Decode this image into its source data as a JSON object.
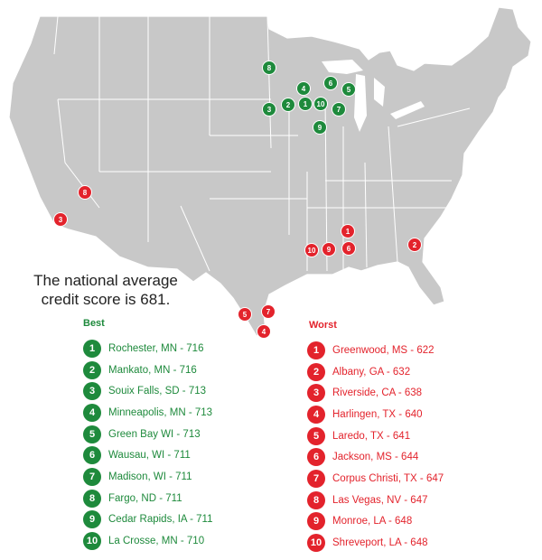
{
  "colors": {
    "best": "#1e8a3c",
    "worst": "#e3232c",
    "land": "#c8c8c8",
    "border": "#ffffff",
    "text": "#222222"
  },
  "headline": {
    "line1": "The national average",
    "line2": "credit score is 681."
  },
  "best": {
    "title": "Best",
    "items": [
      {
        "rank": "1",
        "text": "Rochester, MN - 716"
      },
      {
        "rank": "2",
        "text": "Mankato, MN - 716"
      },
      {
        "rank": "3",
        "text": "Souix Falls, SD - 713"
      },
      {
        "rank": "4",
        "text": "Minneapolis, MN - 713"
      },
      {
        "rank": "5",
        "text": "Green Bay WI - 713"
      },
      {
        "rank": "6",
        "text": "Wausau, WI - 711"
      },
      {
        "rank": "7",
        "text": "Madison, WI - 711"
      },
      {
        "rank": "8",
        "text": "Fargo, ND - 711"
      },
      {
        "rank": "9",
        "text": "Cedar Rapids, IA - 711"
      },
      {
        "rank": "10",
        "text": "La Crosse, MN - 710"
      }
    ]
  },
  "worst": {
    "title": "Worst",
    "items": [
      {
        "rank": "1",
        "text": "Greenwood, MS - 622"
      },
      {
        "rank": "2",
        "text": "Albany, GA - 632"
      },
      {
        "rank": "3",
        "text": "Riverside, CA - 638"
      },
      {
        "rank": "4",
        "text": "Harlingen, TX - 640"
      },
      {
        "rank": "5",
        "text": "Laredo, TX - 641"
      },
      {
        "rank": "6",
        "text": "Jackson, MS - 644"
      },
      {
        "rank": "7",
        "text": "Corpus Christi, TX - 647"
      },
      {
        "rank": "8",
        "text": "Las Vegas, NV - 647"
      },
      {
        "rank": "9",
        "text": "Monroe, LA - 648"
      },
      {
        "rank": "10",
        "text": "Shreveport, LA - 648"
      }
    ]
  },
  "markers": {
    "best": [
      {
        "label": "1"
      },
      {
        "label": "2"
      },
      {
        "label": "3"
      },
      {
        "label": "4"
      },
      {
        "label": "5"
      },
      {
        "label": "6"
      },
      {
        "label": "7"
      },
      {
        "label": "8"
      },
      {
        "label": "9"
      },
      {
        "label": "10"
      }
    ],
    "worst": [
      {
        "label": "1"
      },
      {
        "label": "2"
      },
      {
        "label": "3"
      },
      {
        "label": "4"
      },
      {
        "label": "5"
      },
      {
        "label": "6"
      },
      {
        "label": "7"
      },
      {
        "label": "8"
      },
      {
        "label": "9"
      },
      {
        "label": "10"
      }
    ]
  }
}
